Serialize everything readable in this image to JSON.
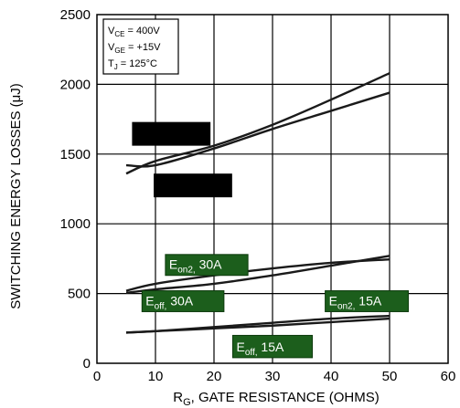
{
  "chart_data": {
    "type": "line",
    "xlabel": {
      "main": "R",
      "sub": "G",
      "rest": ", GATE  RESISTANCE (OHMS)"
    },
    "ylabel": "SWITCHING  ENERGY  LOSSES (μJ)",
    "xlim": [
      0,
      60
    ],
    "ylim": [
      0,
      2500
    ],
    "xticks": [
      0,
      10,
      20,
      30,
      40,
      50,
      60
    ],
    "yticks": [
      0,
      500,
      1000,
      1500,
      2000,
      2500
    ],
    "grid": true,
    "conditions": [
      {
        "base": "V",
        "sub": "CE",
        "rest": " =  400V"
      },
      {
        "base": "V",
        "sub": "GE",
        "rest": " =  +15V"
      },
      {
        "base": "T",
        "sub": "J",
        "rest": " = 125°C"
      }
    ],
    "series": [
      {
        "x": [
          5,
          10,
          20,
          30,
          40,
          50
        ],
        "y": [
          1360,
          1450,
          1560,
          1710,
          1890,
          2080
        ]
      },
      {
        "x": [
          5,
          10,
          20,
          30,
          40,
          50
        ],
        "y": [
          1420,
          1420,
          1540,
          1680,
          1810,
          1940
        ]
      },
      {
        "name": {
          "base": "E",
          "sub": "on2,",
          "rest": " 30A"
        },
        "x": [
          5,
          10,
          20,
          30,
          40,
          50
        ],
        "y": [
          520,
          570,
          630,
          680,
          720,
          745
        ]
      },
      {
        "name": {
          "base": "E",
          "sub": "off,",
          "rest": " 30A"
        },
        "x": [
          5,
          10,
          20,
          30,
          40,
          50
        ],
        "y": [
          505,
          530,
          570,
          630,
          700,
          770
        ]
      },
      {
        "name": {
          "base": "E",
          "sub": "on2,",
          "rest": " 15A"
        },
        "x": [
          5,
          10,
          20,
          30,
          40,
          50
        ],
        "y": [
          220,
          230,
          250,
          270,
          295,
          320
        ]
      },
      {
        "name": {
          "base": "E",
          "sub": "off,",
          "rest": " 15A"
        },
        "x": [
          5,
          10,
          20,
          30,
          40,
          50
        ],
        "y": [
          220,
          230,
          260,
          290,
          320,
          340
        ]
      }
    ]
  }
}
